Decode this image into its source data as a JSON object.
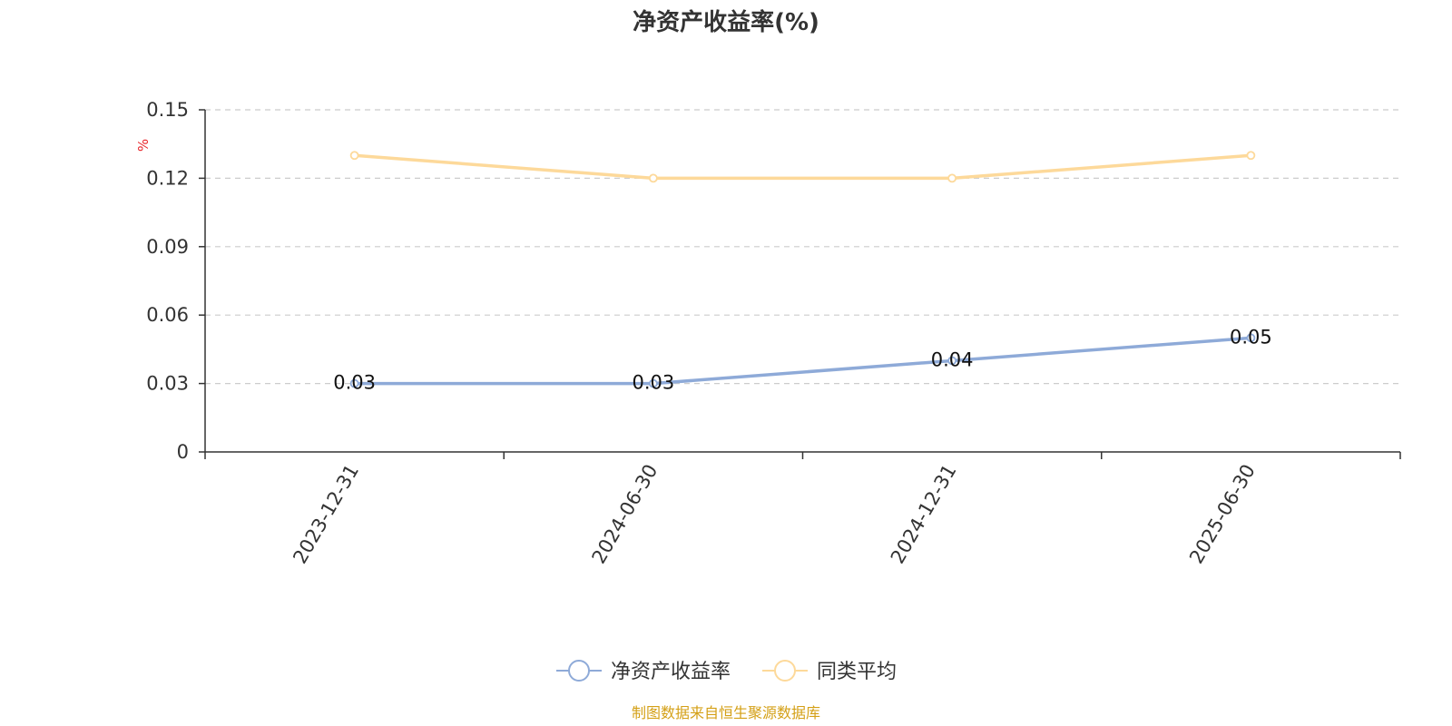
{
  "colors": {
    "series_roe": "#8eaad8",
    "series_avg": "#fdd99a",
    "axis": "#333333",
    "grid": "#cccccc",
    "unit": "#e8262b",
    "source": "#d4a017"
  },
  "chart_data": {
    "type": "line",
    "title": "净资产收益率(%)",
    "ylabel": "%",
    "xlabel": "",
    "categories": [
      "2023-12-31",
      "2024-06-30",
      "2024-12-31",
      "2025-06-30"
    ],
    "ylim": [
      0,
      0.15
    ],
    "yticks": [
      "0",
      "0.03",
      "0.06",
      "0.09",
      "0.12",
      "0.15"
    ],
    "grid": true,
    "legend_position": "bottom-center",
    "series": [
      {
        "name": "净资产收益率",
        "values": [
          0.03,
          0.03,
          0.04,
          0.05
        ],
        "labels": [
          "0.03",
          "0.03",
          "0.04",
          "0.05"
        ],
        "color": "#8eaad8",
        "show_labels": true
      },
      {
        "name": "同类平均",
        "values": [
          0.13,
          0.12,
          0.12,
          0.13
        ],
        "color": "#fdd99a",
        "show_labels": false
      }
    ]
  },
  "footer": {
    "source": "制图数据来自恒生聚源数据库"
  }
}
